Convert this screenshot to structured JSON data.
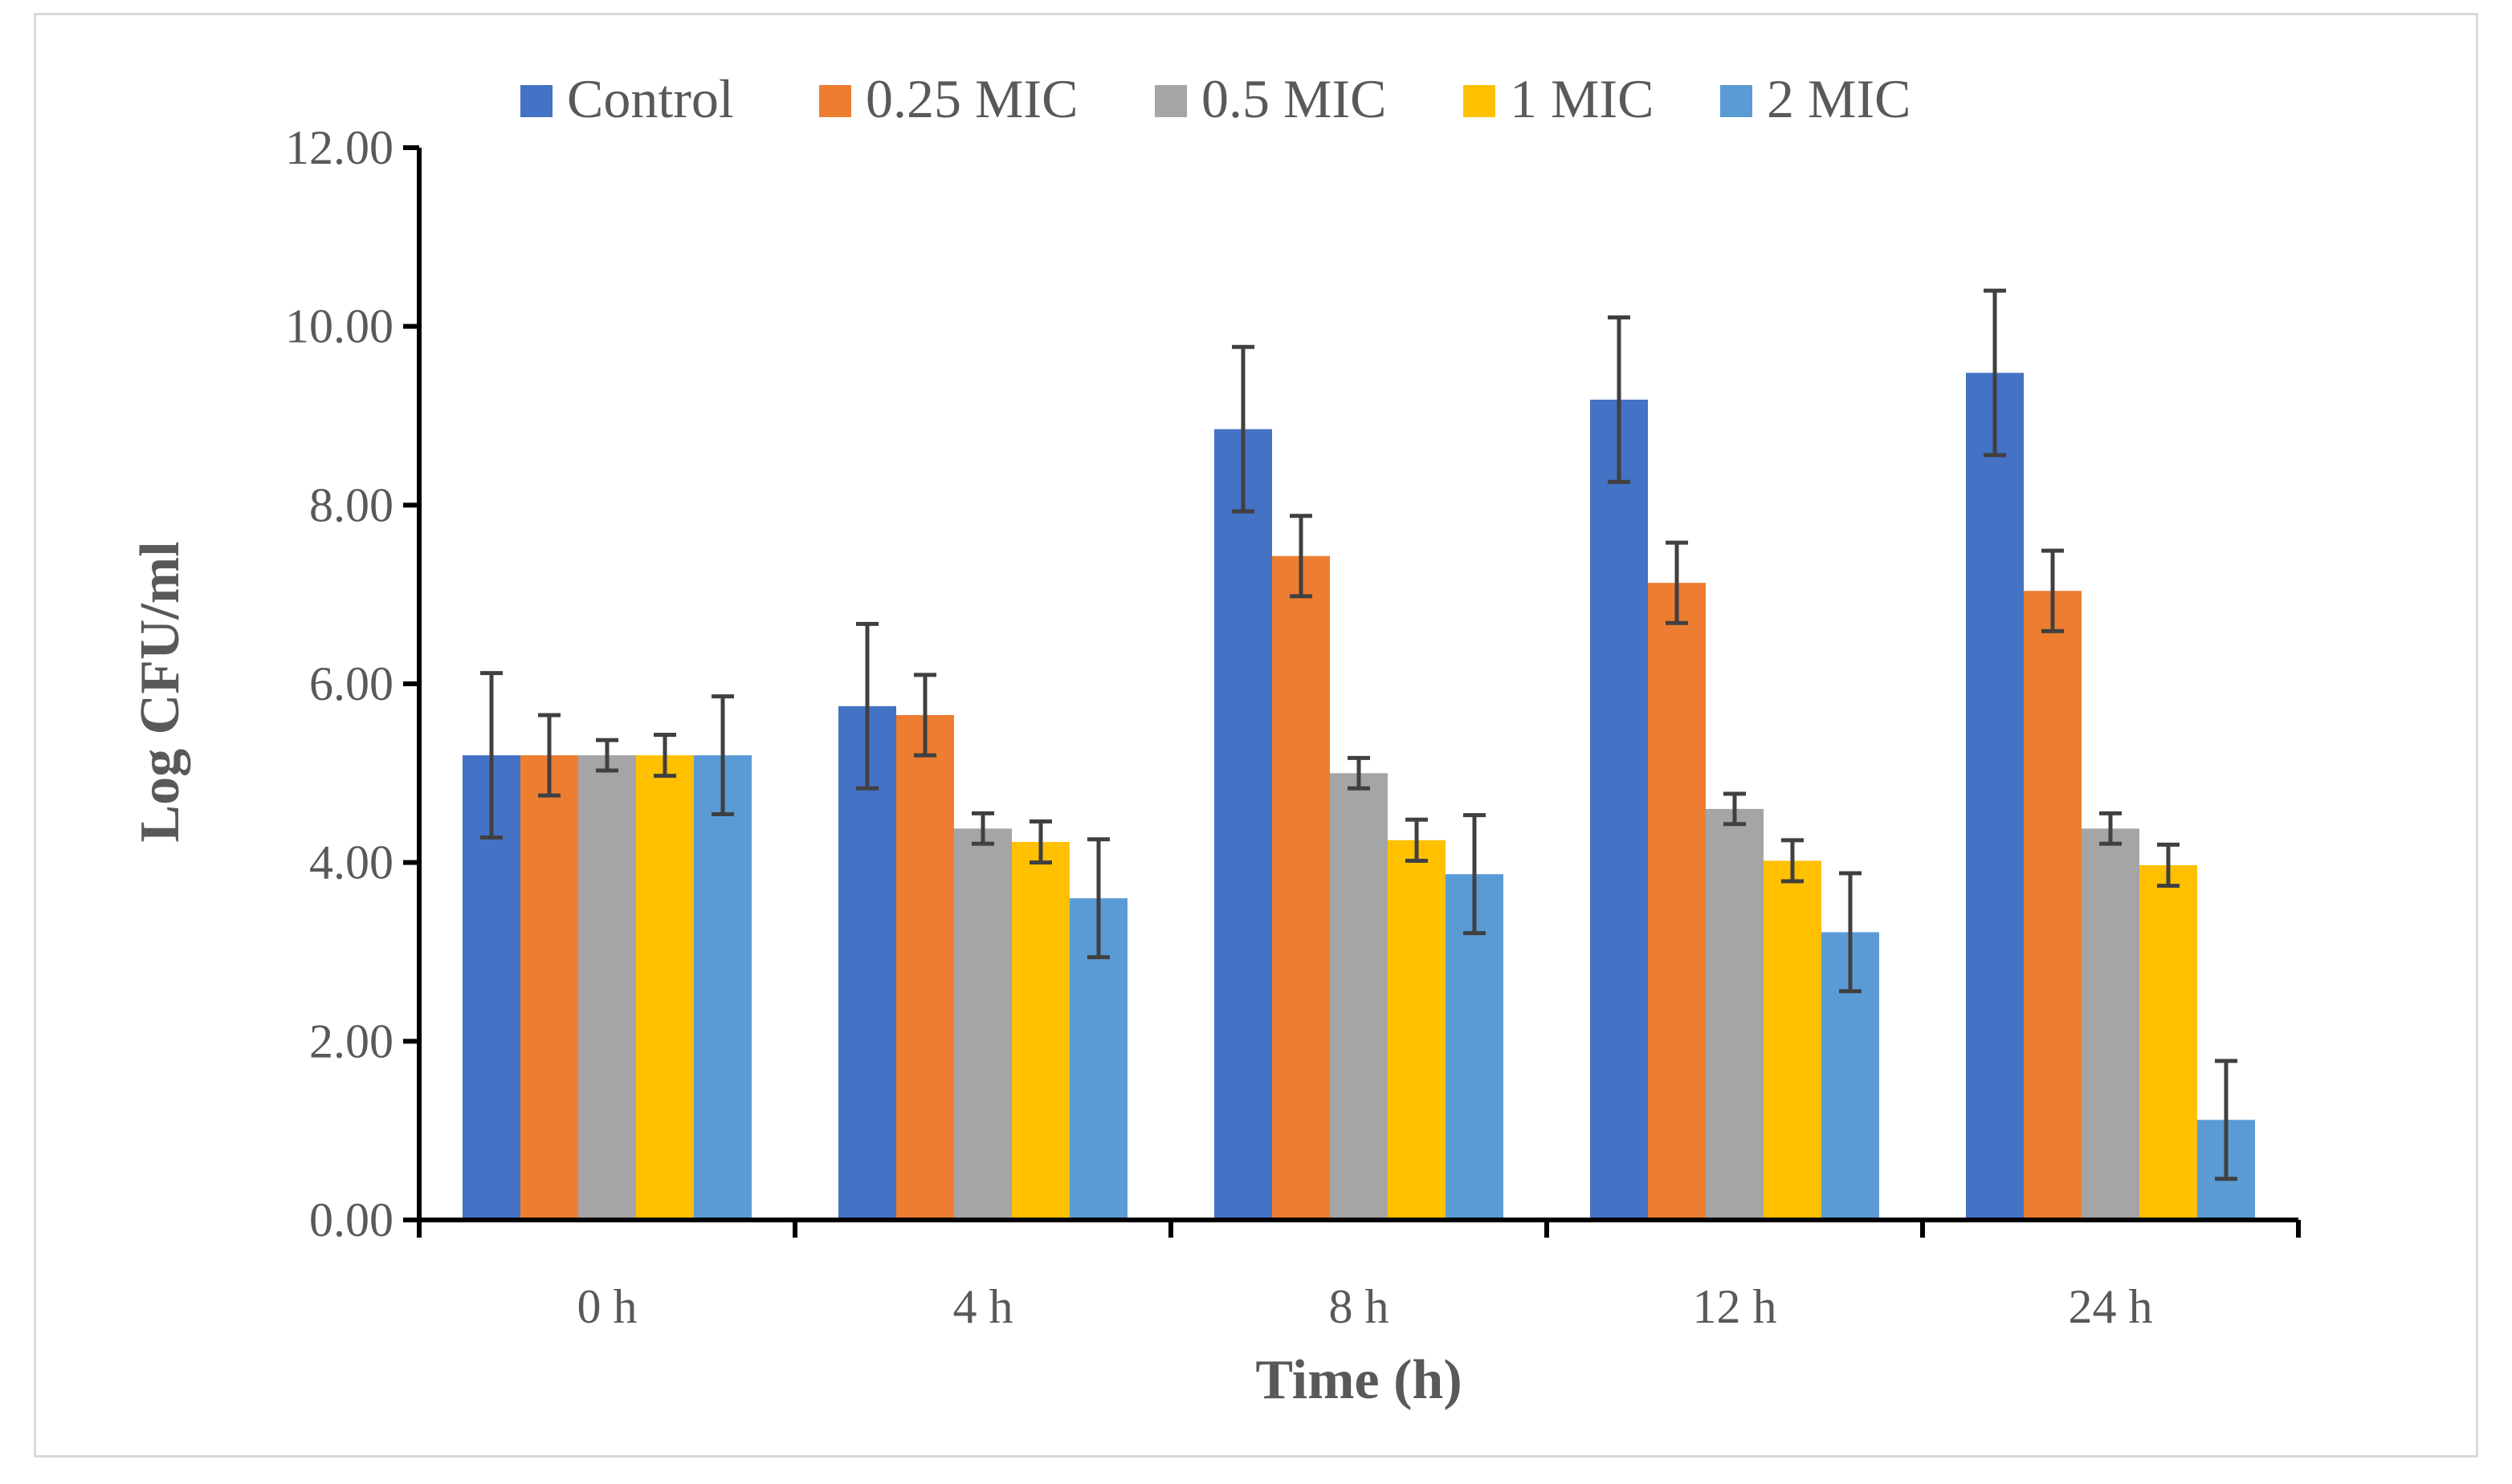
{
  "chart_data": {
    "type": "bar",
    "title": "",
    "xlabel": "Time (h)",
    "ylabel": "Log CFU/ml",
    "ylim": [
      0,
      12
    ],
    "yticks": [
      "0.00",
      "2.00",
      "4.00",
      "6.00",
      "8.00",
      "10.00",
      "12.00"
    ],
    "grid": false,
    "legend_position": "top",
    "categories": [
      "0 h",
      "4 h",
      "8 h",
      "12 h",
      "24 h"
    ],
    "series": [
      {
        "name": "Control",
        "color": "#4472C4",
        "values": [
          5.2,
          5.75,
          8.85,
          9.18,
          9.48
        ],
        "errors": [
          0.92,
          0.92,
          0.92,
          0.92,
          0.92
        ]
      },
      {
        "name": "0.25 MIC",
        "color": "#ED7D31",
        "values": [
          5.2,
          5.65,
          7.43,
          7.13,
          7.04
        ],
        "errors": [
          0.45,
          0.45,
          0.45,
          0.45,
          0.45
        ]
      },
      {
        "name": "0.5 MIC",
        "color": "#A5A5A5",
        "values": [
          5.2,
          4.38,
          5.0,
          4.6,
          4.38
        ],
        "errors": [
          0.17,
          0.17,
          0.17,
          0.17,
          0.17
        ]
      },
      {
        "name": "1 MIC",
        "color": "#FFC000",
        "values": [
          5.2,
          4.23,
          4.25,
          4.02,
          3.97
        ],
        "errors": [
          0.23,
          0.23,
          0.23,
          0.23,
          0.23
        ]
      },
      {
        "name": "2 MIC",
        "color": "#5B9BD5",
        "values": [
          5.2,
          3.6,
          3.87,
          3.22,
          1.12
        ],
        "errors": [
          0.66,
          0.66,
          0.66,
          0.66,
          0.66
        ]
      }
    ]
  }
}
